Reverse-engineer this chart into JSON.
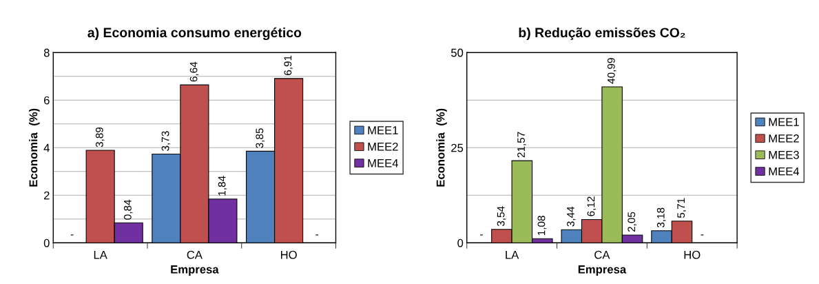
{
  "chart_data": [
    {
      "type": "bar",
      "title": "a) Economia consumo energético",
      "xlabel": "Empresa",
      "ylabel": "Economia  (%)",
      "categories": [
        "LA",
        "CA",
        "HO"
      ],
      "ylim": [
        0,
        8
      ],
      "yticks": [
        0,
        {
          "value": 1,
          "label": null
        },
        2,
        {
          "value": 3,
          "label": null
        },
        4,
        {
          "value": 5,
          "label": null
        },
        6,
        {
          "value": 7,
          "label": null
        },
        8
      ],
      "grid": "y",
      "legend": "right",
      "series": [
        {
          "name": "MEE1",
          "color": "#4f81bd",
          "values": [
            null,
            3.73,
            3.85
          ],
          "value_labels": [
            "-",
            "3,73",
            "3,85"
          ]
        },
        {
          "name": "MEE2",
          "color": "#c0504d",
          "values": [
            3.89,
            6.64,
            6.91
          ],
          "value_labels": [
            "3,89",
            "6,64",
            "6,91"
          ]
        },
        {
          "name": "MEE4",
          "color": "#7030a0",
          "values": [
            0.84,
            1.84,
            null
          ],
          "value_labels": [
            "0,84",
            "1,84",
            "-"
          ]
        }
      ]
    },
    {
      "type": "bar",
      "title": "b) Redução emissões CO₂",
      "xlabel": "Empresa",
      "ylabel": "Economia  (%)",
      "categories": [
        "LA",
        "CA",
        "HO"
      ],
      "ylim": [
        0,
        50
      ],
      "yticks": [
        0,
        {
          "value": 12.5,
          "label": null
        },
        25,
        {
          "value": 37.5,
          "label": null
        },
        50
      ],
      "grid": "y",
      "legend": "right",
      "series": [
        {
          "name": "MEE1",
          "color": "#4f81bd",
          "values": [
            null,
            3.44,
            3.18
          ],
          "value_labels": [
            "-",
            "3,44",
            "3,18"
          ]
        },
        {
          "name": "MEE2",
          "color": "#c0504d",
          "values": [
            3.54,
            6.12,
            5.71
          ],
          "value_labels": [
            "3,54",
            "6,12",
            "5,71"
          ]
        },
        {
          "name": "MEE3",
          "color": "#9bbb59",
          "values": [
            21.57,
            40.99,
            null
          ],
          "value_labels": [
            "21,57",
            "40,99",
            "-"
          ]
        },
        {
          "name": "MEE4",
          "color": "#7030a0",
          "values": [
            1.08,
            2.05,
            null
          ],
          "value_labels": [
            "1,08",
            "2,05",
            null
          ]
        }
      ]
    }
  ]
}
